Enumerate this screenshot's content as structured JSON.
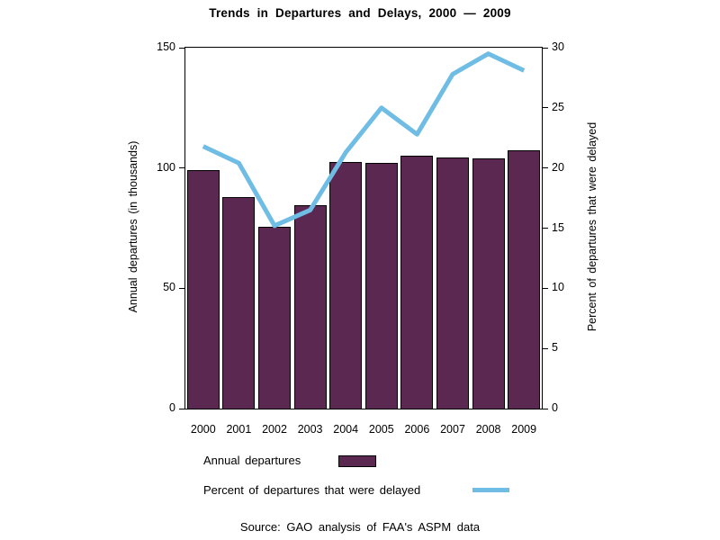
{
  "title": "Trends in Departures and Delays, 2000 — 2009",
  "chart_data": {
    "type": "bar+line",
    "categories": [
      "2000",
      "2001",
      "2002",
      "2003",
      "2004",
      "2005",
      "2006",
      "2007",
      "2008",
      "2009"
    ],
    "series": [
      {
        "name": "Annual departures",
        "type": "bar",
        "axis": "left",
        "values": [
          99,
          88,
          75.5,
          84.5,
          102.5,
          102,
          105,
          104.5,
          104,
          107.5
        ],
        "color": "#5a2850"
      },
      {
        "name": "Percent of departures that were delayed",
        "type": "line",
        "axis": "right",
        "values": [
          21.8,
          20.4,
          15.2,
          16.5,
          21.3,
          25,
          22.8,
          27.8,
          29.5,
          28.1
        ],
        "color": "#6fbce4"
      }
    ],
    "left_axis": {
      "label": "Annual departures (in thousands)",
      "ticks": [
        0,
        50,
        100,
        150
      ],
      "min": 0,
      "max": 150
    },
    "right_axis": {
      "label": "Percent of departures that were delayed",
      "ticks": [
        0,
        5,
        10,
        15,
        20,
        25,
        30
      ],
      "min": 0,
      "max": 30
    },
    "grid": false,
    "legend_position": "bottom-left",
    "title": "Trends in Departures and Delays, 2000 — 2009"
  },
  "legend": [
    {
      "label": "Annual departures",
      "swatch": "bar"
    },
    {
      "label": "Percent of departures that were delayed",
      "swatch": "line"
    }
  ],
  "source": "Source: GAO analysis of FAA's ASPM data",
  "colors": {
    "bar": "#5a2850",
    "line": "#6fbce4",
    "axis": "#000000",
    "background": "#ffffff"
  }
}
